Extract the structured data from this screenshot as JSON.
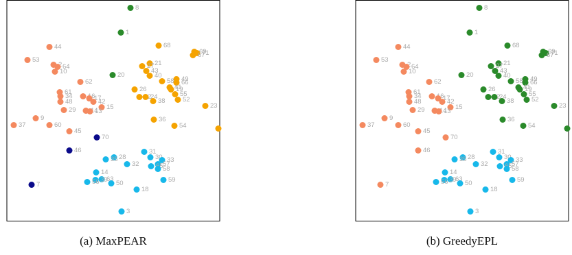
{
  "chart_data": [
    {
      "type": "scatter",
      "title": "(a) MaxPEAR",
      "xlim": [
        0,
        310
      ],
      "ylim": [
        0,
        322
      ],
      "series": [
        {
          "color": "#2a8a2a",
          "x": [
            180,
            166,
            154
          ],
          "values": [
            311,
            275,
            213
          ],
          "labels": [
            "8",
            "1",
            "20"
          ]
        },
        {
          "color": "#f4895f",
          "x": [
            62,
            30,
            68,
            74,
            70,
            107,
            77,
            78,
            78,
            111,
            120,
            126,
            138,
            83,
            115,
            121,
            42,
            10,
            62,
            91
          ],
          "values": [
            254,
            235,
            228,
            225,
            218,
            203,
            188,
            182,
            174,
            182,
            179,
            174,
            166,
            162,
            161,
            160,
            150,
            140,
            140,
            131
          ],
          "labels": [
            "44",
            "53",
            "2",
            "64",
            "10",
            "62",
            "61",
            "34",
            "48",
            "16",
            "17",
            "42",
            "15",
            "29",
            "14",
            "13",
            "9",
            "37",
            "60",
            "45"
          ]
        },
        {
          "color": "#f5a300",
          "x": [
            221,
            273,
            277,
            271,
            208,
            197,
            203,
            208,
            247,
            226,
            247,
            237,
            186,
            239,
            193,
            202,
            213,
            245,
            249,
            289,
            214,
            244,
            308
          ],
          "values": [
            256,
            247,
            245,
            242,
            230,
            226,
            219,
            212,
            207,
            204,
            202,
            195,
            192,
            192,
            181,
            181,
            175,
            185,
            177,
            168,
            148,
            139,
            135
          ],
          "labels": [
            "68",
            "69",
            "71",
            "67",
            "21",
            "27",
            "43",
            "40",
            "49",
            "58",
            "66",
            "41",
            "26",
            "19",
            "22",
            "24",
            "38",
            "55",
            "52",
            "23",
            "36",
            "54",
            null
          ]
        },
        {
          "color": "#0a0a8a",
          "x": [
            131,
            91,
            36
          ],
          "values": [
            122,
            103,
            53
          ],
          "labels": [
            "70",
            "46",
            "7"
          ]
        },
        {
          "color": "#17b8ea",
          "x": [
            200,
            156,
            144,
            209,
            226,
            175,
            220,
            210,
            220,
            130,
            138,
            129,
            117,
            152,
            228,
            189,
            167
          ],
          "values": [
            101,
            93,
            90,
            93,
            89,
            83,
            83,
            80,
            76,
            71,
            61,
            60,
            57,
            55,
            60,
            46,
            14
          ],
          "labels": [
            "31",
            "28",
            "35",
            "30",
            "33",
            "32",
            "57",
            "65",
            "58",
            "14",
            "63",
            "39",
            "56",
            "50",
            "59",
            "18",
            "3"
          ]
        }
      ]
    },
    {
      "type": "scatter",
      "title": "(b) GreedyEPL",
      "xlim": [
        0,
        310
      ],
      "ylim": [
        0,
        322
      ],
      "series": [
        {
          "color": "#2a8a2a",
          "x": [
            180,
            166,
            154,
            221,
            273,
            277,
            271,
            208,
            197,
            203,
            208,
            247,
            226,
            247,
            237,
            186,
            239,
            193,
            202,
            213,
            245,
            249,
            289,
            214,
            244,
            308
          ],
          "values": [
            311,
            275,
            213,
            256,
            247,
            245,
            242,
            230,
            226,
            219,
            212,
            207,
            204,
            202,
            195,
            192,
            192,
            181,
            181,
            175,
            185,
            177,
            168,
            148,
            139,
            135
          ],
          "labels": [
            "8",
            "1",
            "20",
            "68",
            "69",
            "71",
            "67",
            "21",
            "27",
            "43",
            "40",
            "49",
            "58",
            "66",
            "41",
            "26",
            "19",
            "22",
            "24",
            "38",
            "55",
            "52",
            "23",
            "36",
            "54",
            null
          ]
        },
        {
          "color": "#f4895f",
          "x": [
            62,
            30,
            68,
            74,
            70,
            107,
            77,
            78,
            78,
            111,
            120,
            126,
            138,
            83,
            115,
            121,
            42,
            10,
            62,
            91,
            131,
            91,
            36
          ],
          "values": [
            254,
            235,
            228,
            225,
            218,
            203,
            188,
            182,
            174,
            182,
            179,
            174,
            166,
            162,
            161,
            160,
            150,
            140,
            140,
            131,
            122,
            103,
            53
          ],
          "labels": [
            "44",
            "53",
            "2",
            "64",
            "10",
            "62",
            "61",
            "34",
            "48",
            "16",
            "17",
            "42",
            "15",
            "29",
            "14",
            "13",
            "9",
            "37",
            "60",
            "45",
            "70",
            "46",
            "7"
          ]
        },
        {
          "color": "#17b8ea",
          "x": [
            200,
            156,
            144,
            209,
            226,
            175,
            220,
            210,
            220,
            130,
            138,
            129,
            117,
            152,
            228,
            189,
            167
          ],
          "values": [
            101,
            93,
            90,
            93,
            89,
            83,
            83,
            80,
            76,
            71,
            61,
            60,
            57,
            55,
            60,
            46,
            14
          ],
          "labels": [
            "31",
            "28",
            "35",
            "30",
            "33",
            "32",
            "57",
            "65",
            "58",
            "14",
            "63",
            "39",
            "56",
            "50",
            "59",
            "18",
            "3"
          ]
        }
      ]
    }
  ]
}
